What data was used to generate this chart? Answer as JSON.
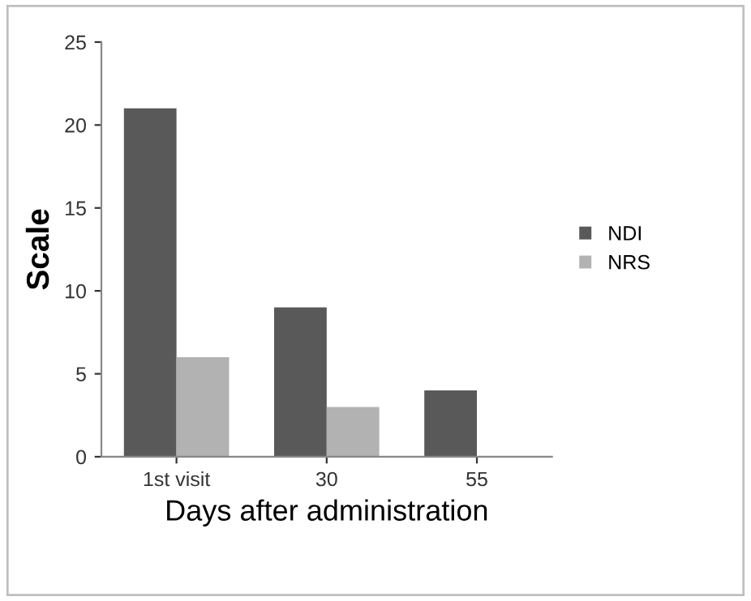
{
  "chart_data": {
    "type": "bar",
    "xlabel": "Days after administration",
    "ylabel": "Scale",
    "categories": [
      "1st visit",
      "30",
      "55"
    ],
    "series": [
      {
        "name": "NDI",
        "color": "#595959",
        "values": [
          21,
          9,
          4
        ]
      },
      {
        "name": "NRS",
        "color": "#b2b2b2",
        "values": [
          6,
          3,
          0
        ]
      }
    ],
    "ylim": [
      0,
      25
    ],
    "yticks": [
      0,
      5,
      10,
      15,
      20,
      25
    ],
    "grid": false,
    "legend": "right"
  }
}
